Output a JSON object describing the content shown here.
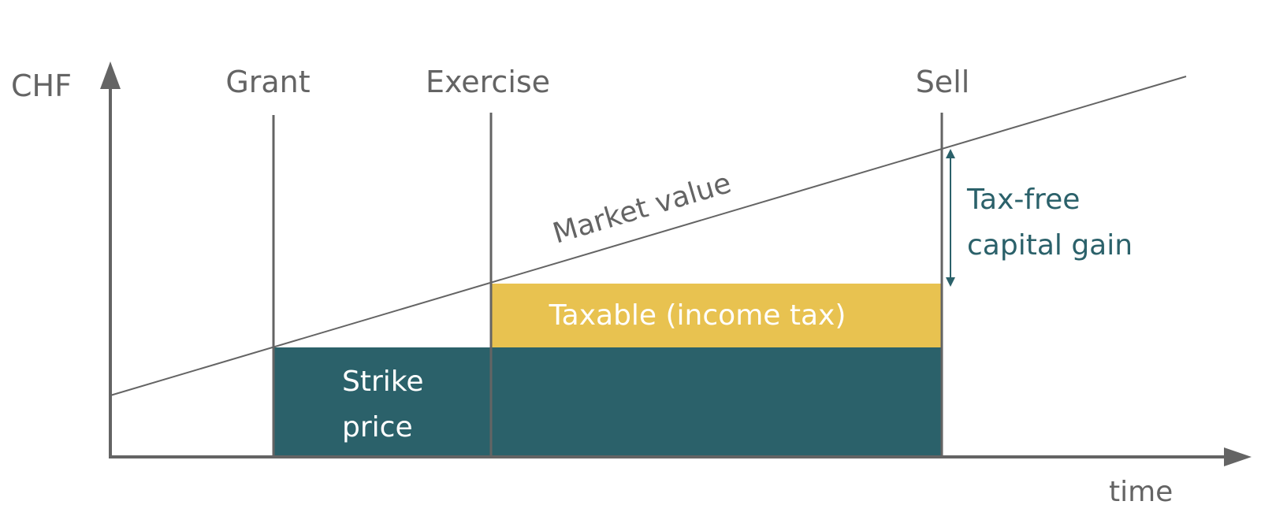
{
  "axes": {
    "y_label": "CHF",
    "x_label": "time"
  },
  "events": {
    "grant": "Grant",
    "exercise": "Exercise",
    "sell": "Sell"
  },
  "line": {
    "label": "Market value"
  },
  "regions": {
    "strike_line1": "Strike",
    "strike_line2": "price",
    "taxable": "Taxable (income tax)",
    "capital_gain_line1": "Tax-free",
    "capital_gain_line2": "capital gain"
  },
  "colors": {
    "axis": "#646464",
    "teal": "#2b616a",
    "gold": "#e8c250",
    "gain_text": "#2b616a",
    "label_gray": "#646464",
    "white_text": "#ffffff"
  }
}
